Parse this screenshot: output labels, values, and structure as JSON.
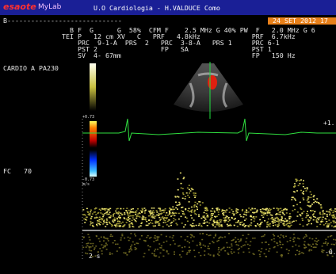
{
  "header": {
    "logo_brand": "esaote",
    "logo_product": "MyLab",
    "title": "U.O Cardiologia - H.VALDUCE Como",
    "date": "24 SET 2012 17"
  },
  "status_line": "B-----------------------------",
  "parameters": [
    "  B F  G      G  58%  CFM F    2.5 MHz G 40% PW  F   2.0 MHz G 6",
    "TEI P   12 cm XV   C   PRF   4.8kHz             PRF  6.7kHz",
    "    PRC  9-1-A  PRS  2   PRC  3-8-A   PRS 1     PRC 6-1",
    "    PST 2                FP   SA                PST 1",
    "    SV  4- 67mm                                 FP   150 Hz"
  ],
  "probe": "CARDIO A PA230",
  "heart_rate_label": "FC",
  "heart_rate": "70",
  "color_scale": {
    "top": "+0.73",
    "bottom": "-0.73",
    "unit": "m/s"
  },
  "doppler": {
    "scale_top": "+1.",
    "scale_bottom": "-0.",
    "time_scale": "2 s"
  }
}
